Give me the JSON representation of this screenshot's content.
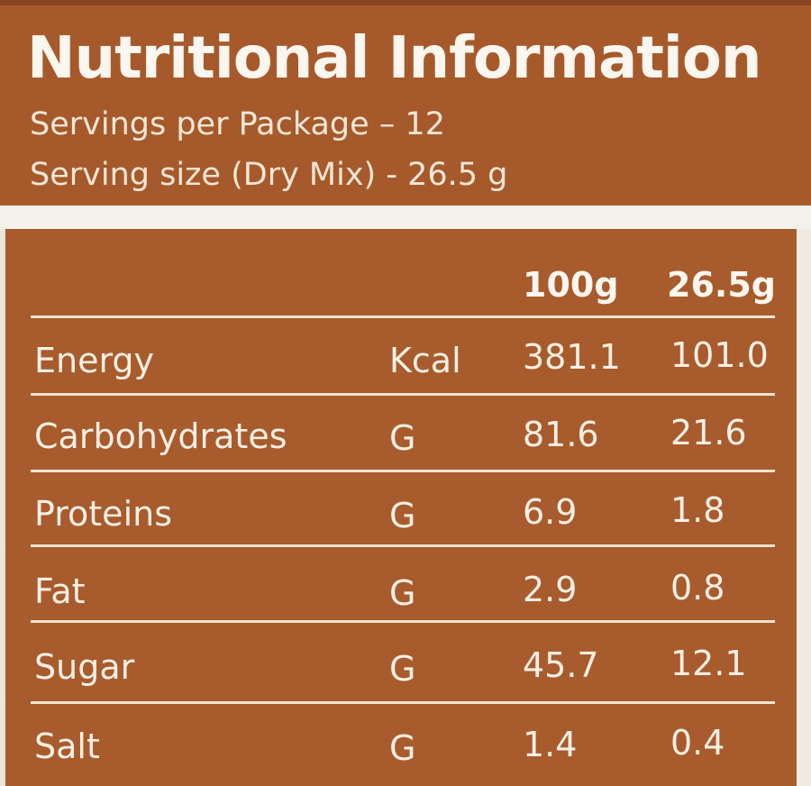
{
  "title": "Nutritional Information",
  "servings_per_package": "Servings per Package – 12",
  "serving_size": "Serving size (Dry Mix) - 26.5 g",
  "columns": {
    "per_100": "100g",
    "per_serving": "26.5g"
  },
  "rows": [
    {
      "name": "Energy",
      "unit": "Kcal",
      "per_100": "381.1",
      "per_serving": "101.0"
    },
    {
      "name": "Carbohydrates",
      "unit": "G",
      "per_100": "81.6",
      "per_serving": "21.6"
    },
    {
      "name": "Proteins",
      "unit": "G",
      "per_100": "6.9",
      "per_serving": "1.8"
    },
    {
      "name": "Fat",
      "unit": "G",
      "per_100": "2.9",
      "per_serving": "0.8"
    },
    {
      "name": "Sugar",
      "unit": "G",
      "per_100": "45.7",
      "per_serving": "12.1"
    },
    {
      "name": "Salt",
      "unit": "G",
      "per_100": "1.4",
      "per_serving": "0.4"
    }
  ]
}
